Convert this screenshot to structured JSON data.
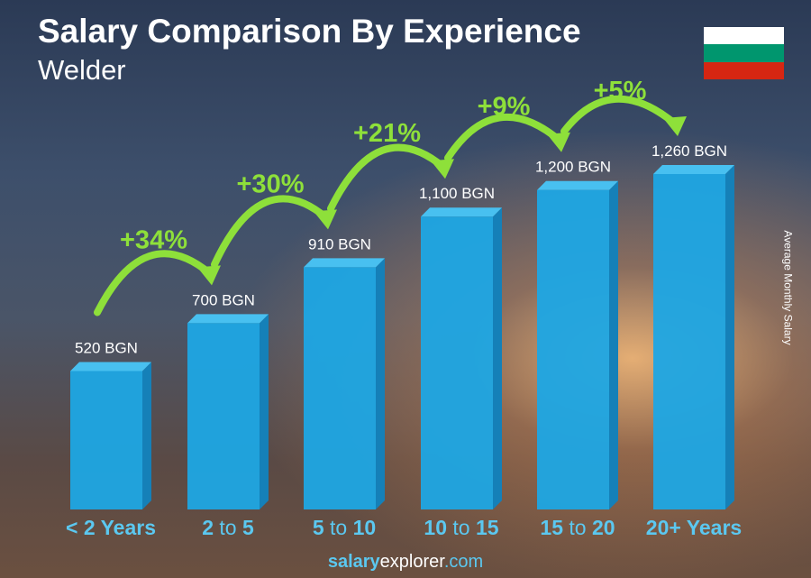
{
  "chart_data": {
    "type": "bar",
    "title": "Salary Comparison By Experience",
    "subtitle": "Welder",
    "ylabel": "Average Monthly Salary",
    "categories": [
      {
        "a": "< 2 Years",
        "mid": "",
        "b": ""
      },
      {
        "a": "2",
        "mid": "to",
        "b": "5"
      },
      {
        "a": "5",
        "mid": "to",
        "b": "10"
      },
      {
        "a": "10",
        "mid": "to",
        "b": "15"
      },
      {
        "a": "15",
        "mid": "to",
        "b": "20"
      },
      {
        "a": "20+ Years",
        "mid": "",
        "b": ""
      }
    ],
    "values": [
      520,
      700,
      910,
      1100,
      1200,
      1260
    ],
    "value_labels": [
      "520 BGN",
      "700 BGN",
      "910 BGN",
      "1,100 BGN",
      "1,200 BGN",
      "1,260 BGN"
    ],
    "changes": [
      "+34%",
      "+30%",
      "+21%",
      "+9%",
      "+5%"
    ],
    "unit": "BGN",
    "colors": {
      "bar": "#1ea7e4",
      "bar_side": "#1580b8",
      "bar_top": "#48c0f0",
      "change": "#8ee03a",
      "category": "#5bc8f0"
    }
  },
  "flag_colors": [
    "#ffffff",
    "#00966e",
    "#d62612"
  ],
  "footer": {
    "part1": "salary",
    "part2": "explorer",
    "part3": ".com"
  }
}
